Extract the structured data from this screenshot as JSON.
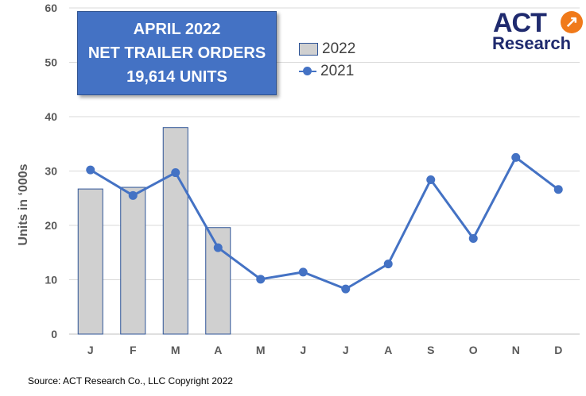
{
  "title_box": {
    "line1": "APRIL 2022",
    "line2": "NET TRAILER ORDERS",
    "line3": "19,614  UNITS"
  },
  "logo": {
    "act": "ACT",
    "research": "Research"
  },
  "source": "Source: ACT Research Co., LLC  Copyright 2022",
  "colors": {
    "bar_fill": "#d0d0d0",
    "bar_stroke": "#2f5597",
    "line": "#4472c4",
    "title_box": "#4472c4",
    "logo_text": "#1f2a6e",
    "logo_accent": "#f07a1a"
  },
  "chart_data": {
    "type": "bar+line",
    "categories": [
      "J",
      "F",
      "M",
      "A",
      "M",
      "J",
      "J",
      "A",
      "S",
      "O",
      "N",
      "D"
    ],
    "series": [
      {
        "name": "2022",
        "type": "bar",
        "values": [
          26.7,
          27.0,
          38.0,
          19.6,
          null,
          null,
          null,
          null,
          null,
          null,
          null,
          null
        ]
      },
      {
        "name": "2021",
        "type": "line",
        "values": [
          30.2,
          25.5,
          29.7,
          15.9,
          10.1,
          11.4,
          8.3,
          12.9,
          28.4,
          17.6,
          32.5,
          26.6
        ]
      }
    ],
    "ylabel": "Units in ‘000s",
    "xlabel": "",
    "ylim": [
      0,
      60
    ],
    "yticks": [
      0,
      10,
      20,
      30,
      40,
      50,
      60
    ],
    "grid": true,
    "legend_position": "top-center"
  }
}
